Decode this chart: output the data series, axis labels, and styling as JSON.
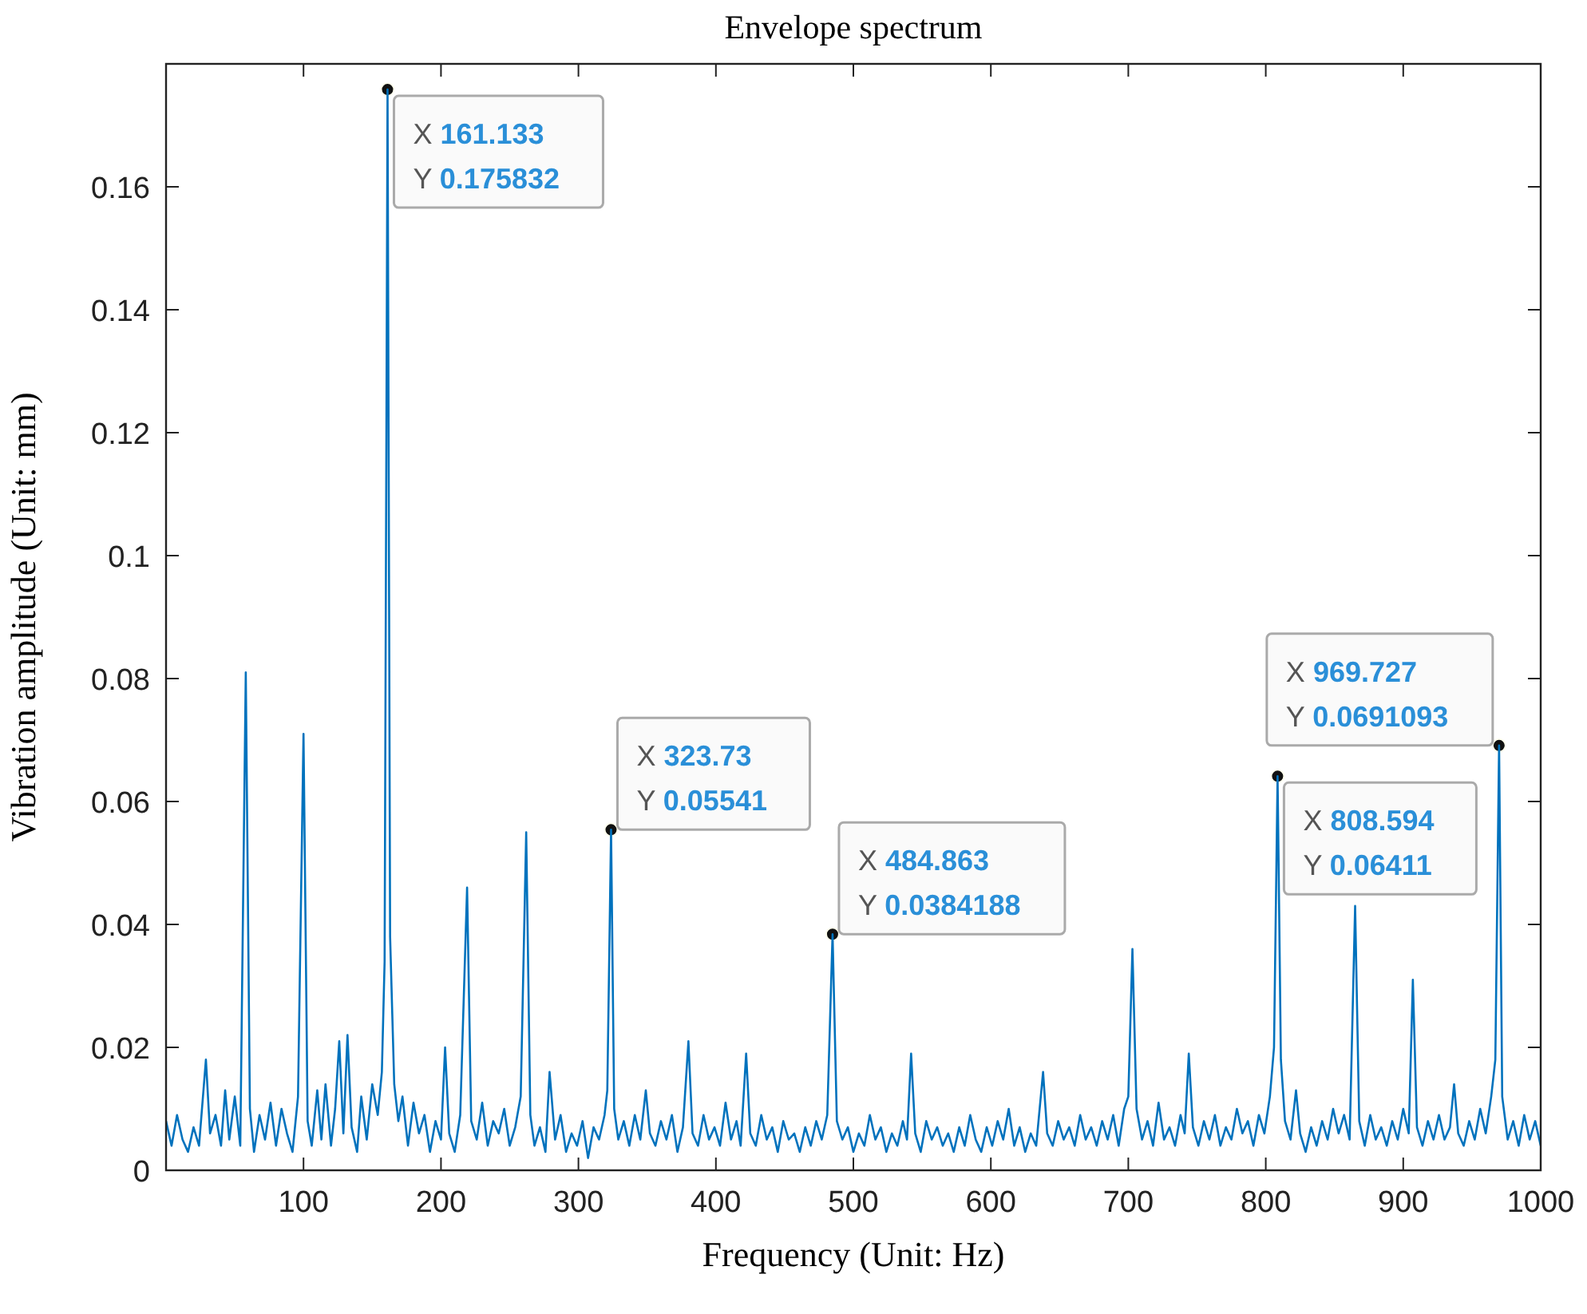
{
  "chart_data": {
    "type": "line",
    "title": "Envelope spectrum",
    "xlabel": "Frequency (Unit: Hz)",
    "ylabel": "Vibration amplitude (Unit: mm)",
    "xlim": [
      0,
      1000
    ],
    "ylim": [
      0,
      0.18
    ],
    "xticks": [
      100,
      200,
      300,
      400,
      500,
      600,
      700,
      800,
      900,
      1000
    ],
    "yticks": [
      0,
      0.02,
      0.04,
      0.06,
      0.08,
      0.1,
      0.12,
      0.14,
      0.16
    ],
    "grid": false,
    "marker": "none",
    "line_style": "solid",
    "annotations": [
      {
        "text": "X 161.133\nY 0.175832",
        "x": 161.133,
        "y": 0.175832
      },
      {
        "text": "X 323.73\nY 0.05541",
        "x": 323.73,
        "y": 0.05541
      },
      {
        "text": "X 484.863\nY 0.0384188",
        "x": 484.863,
        "y": 0.0384188
      },
      {
        "text": "X 808.594\nY 0.06411",
        "x": 808.594,
        "y": 0.06411
      },
      {
        "text": "X 969.727\nY 0.0691093",
        "x": 969.727,
        "y": 0.0691093
      }
    ],
    "series": [
      {
        "color": "#0072bd",
        "x": [
          0,
          4,
          8,
          12,
          16,
          20,
          24,
          29,
          32,
          36,
          40,
          43,
          46,
          50,
          54,
          58,
          61,
          64,
          68,
          72,
          76,
          80,
          84,
          88,
          92,
          96,
          100,
          103,
          106,
          110,
          113,
          116,
          120,
          123,
          126,
          129,
          132,
          135,
          139,
          142,
          146,
          150,
          154,
          157,
          159,
          161.133,
          163,
          166,
          169,
          172,
          176,
          180,
          184,
          188,
          192,
          196,
          200,
          203,
          206,
          210,
          214,
          219,
          222,
          226,
          230,
          234,
          238,
          242,
          246,
          250,
          254,
          258,
          262,
          265,
          268,
          272,
          276,
          279,
          283,
          287,
          291,
          295,
          299,
          303,
          307,
          311,
          315,
          319,
          321,
          323.73,
          326,
          329,
          333,
          337,
          341,
          345,
          349,
          352,
          356,
          360,
          364,
          368,
          372,
          376,
          380,
          383,
          387,
          391,
          395,
          399,
          403,
          407,
          411,
          415,
          418,
          422,
          425,
          429,
          433,
          437,
          441,
          445,
          449,
          453,
          457,
          461,
          465,
          469,
          473,
          477,
          481,
          484.863,
          488,
          492,
          496,
          500,
          504,
          508,
          512,
          516,
          520,
          524,
          528,
          532,
          536,
          539,
          542,
          545,
          549,
          553,
          557,
          561,
          565,
          569,
          573,
          577,
          581,
          585,
          589,
          593,
          597,
          601,
          605,
          609,
          613,
          617,
          621,
          625,
          629,
          633,
          638,
          641,
          645,
          649,
          653,
          657,
          661,
          665,
          669,
          673,
          677,
          681,
          685,
          689,
          693,
          697,
          700,
          703,
          706,
          710,
          714,
          718,
          722,
          726,
          730,
          734,
          738,
          741,
          744,
          747,
          751,
          755,
          759,
          763,
          767,
          771,
          775,
          779,
          783,
          787,
          791,
          795,
          799,
          803,
          806,
          808.594,
          811,
          814,
          818,
          822,
          825,
          829,
          833,
          837,
          841,
          845,
          849,
          853,
          857,
          861,
          865,
          868,
          872,
          876,
          880,
          884,
          888,
          892,
          896,
          900,
          904,
          907,
          910,
          914,
          918,
          922,
          926,
          930,
          934,
          937,
          940,
          944,
          948,
          952,
          956,
          960,
          964,
          967,
          969.727,
          972,
          976,
          980,
          984,
          988,
          992,
          996,
          1000
        ],
        "values": [
          0.008,
          0.004,
          0.009,
          0.005,
          0.003,
          0.007,
          0.004,
          0.018,
          0.006,
          0.009,
          0.004,
          0.013,
          0.005,
          0.012,
          0.004,
          0.081,
          0.01,
          0.003,
          0.009,
          0.005,
          0.011,
          0.004,
          0.01,
          0.006,
          0.003,
          0.012,
          0.071,
          0.008,
          0.004,
          0.013,
          0.005,
          0.014,
          0.004,
          0.01,
          0.021,
          0.006,
          0.022,
          0.007,
          0.003,
          0.012,
          0.005,
          0.014,
          0.009,
          0.016,
          0.034,
          0.175832,
          0.038,
          0.014,
          0.008,
          0.012,
          0.004,
          0.011,
          0.006,
          0.009,
          0.003,
          0.008,
          0.005,
          0.02,
          0.006,
          0.003,
          0.009,
          0.046,
          0.008,
          0.005,
          0.011,
          0.004,
          0.008,
          0.006,
          0.01,
          0.004,
          0.007,
          0.012,
          0.055,
          0.009,
          0.004,
          0.007,
          0.003,
          0.016,
          0.005,
          0.009,
          0.003,
          0.006,
          0.004,
          0.008,
          0.002,
          0.007,
          0.005,
          0.009,
          0.013,
          0.05541,
          0.01,
          0.005,
          0.008,
          0.004,
          0.009,
          0.005,
          0.013,
          0.006,
          0.004,
          0.008,
          0.005,
          0.009,
          0.003,
          0.007,
          0.021,
          0.006,
          0.004,
          0.009,
          0.005,
          0.007,
          0.004,
          0.011,
          0.005,
          0.008,
          0.004,
          0.019,
          0.006,
          0.004,
          0.009,
          0.005,
          0.007,
          0.003,
          0.008,
          0.005,
          0.006,
          0.003,
          0.007,
          0.004,
          0.008,
          0.005,
          0.009,
          0.0384188,
          0.008,
          0.005,
          0.007,
          0.003,
          0.006,
          0.004,
          0.009,
          0.005,
          0.007,
          0.003,
          0.006,
          0.004,
          0.008,
          0.005,
          0.019,
          0.006,
          0.003,
          0.008,
          0.005,
          0.007,
          0.004,
          0.006,
          0.003,
          0.007,
          0.004,
          0.009,
          0.005,
          0.003,
          0.007,
          0.004,
          0.008,
          0.005,
          0.01,
          0.004,
          0.007,
          0.003,
          0.006,
          0.004,
          0.016,
          0.006,
          0.004,
          0.008,
          0.005,
          0.007,
          0.004,
          0.009,
          0.005,
          0.007,
          0.004,
          0.008,
          0.005,
          0.009,
          0.004,
          0.01,
          0.012,
          0.036,
          0.01,
          0.005,
          0.008,
          0.004,
          0.011,
          0.005,
          0.007,
          0.004,
          0.009,
          0.006,
          0.019,
          0.007,
          0.004,
          0.008,
          0.005,
          0.009,
          0.004,
          0.007,
          0.005,
          0.01,
          0.006,
          0.008,
          0.004,
          0.009,
          0.006,
          0.012,
          0.02,
          0.06411,
          0.018,
          0.008,
          0.005,
          0.013,
          0.006,
          0.003,
          0.007,
          0.004,
          0.008,
          0.005,
          0.01,
          0.006,
          0.009,
          0.005,
          0.043,
          0.008,
          0.004,
          0.009,
          0.005,
          0.007,
          0.004,
          0.008,
          0.005,
          0.01,
          0.006,
          0.031,
          0.007,
          0.004,
          0.008,
          0.005,
          0.009,
          0.005,
          0.007,
          0.014,
          0.006,
          0.004,
          0.008,
          0.005,
          0.01,
          0.006,
          0.012,
          0.018,
          0.0691093,
          0.012,
          0.005,
          0.008,
          0.004,
          0.009,
          0.005,
          0.008,
          0.004
        ]
      }
    ]
  }
}
